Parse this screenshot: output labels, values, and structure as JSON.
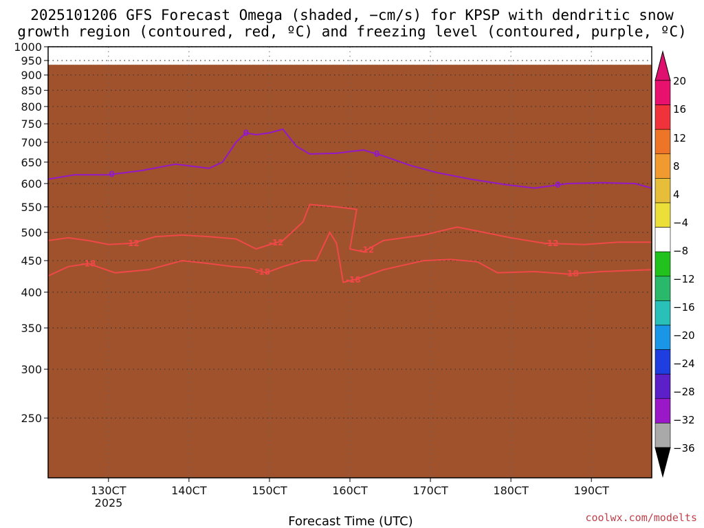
{
  "chart_data": {
    "type": "heatmap",
    "title_line1": "2025101206 GFS Forecast Omega (shaded, −cm/s) for KPSP with dendritic snow",
    "title_line2": "growth region (contoured, red, ºC) and freezing level (contoured, purple, ºC)",
    "xlabel": "Forecast Time (UTC)",
    "year_label": "2025",
    "credit": "coolwx.com/modelts",
    "y_axis": {
      "scale": "log-pressure",
      "range_hpa": [
        1000,
        200
      ],
      "ticks": [
        250,
        300,
        350,
        400,
        450,
        500,
        550,
        600,
        650,
        700,
        750,
        800,
        850,
        900,
        950,
        1000
      ]
    },
    "x_axis": {
      "range_hours": [
        0,
        180
      ],
      "ticks": [
        {
          "label": "130CT",
          "hour": 18
        },
        {
          "label": "140CT",
          "hour": 42
        },
        {
          "label": "150CT",
          "hour": 66
        },
        {
          "label": "160CT",
          "hour": 90
        },
        {
          "label": "170CT",
          "hour": 114
        },
        {
          "label": "180CT",
          "hour": 138
        },
        {
          "label": "190CT",
          "hour": 162
        }
      ]
    },
    "ground_level_hpa": 935,
    "colorbar": {
      "labels": [
        "20",
        "16",
        "12",
        "8",
        "4",
        "−4",
        "−8",
        "−12",
        "−16",
        "−20",
        "−24",
        "−28",
        "−32",
        "−36"
      ],
      "top_triangle_color": "#e0116e",
      "bottom_triangle_color": "#000000",
      "bins": [
        {
          "lo": 20,
          "hi": 24,
          "color": "#e8116e"
        },
        {
          "lo": 16,
          "hi": 20,
          "color": "#f0333a"
        },
        {
          "lo": 12,
          "hi": 16,
          "color": "#ee7528"
        },
        {
          "lo": 8,
          "hi": 12,
          "color": "#f09a30"
        },
        {
          "lo": 4,
          "hi": 8,
          "color": "#e6be3a"
        },
        {
          "lo": 0,
          "hi": 4,
          "color": "#ecdf3a"
        },
        {
          "lo": -4,
          "hi": 4,
          "color": "#ffffff"
        },
        {
          "lo": -8,
          "hi": -4,
          "color": "#22c21e"
        },
        {
          "lo": -12,
          "hi": -8,
          "color": "#2ab86a"
        },
        {
          "lo": -16,
          "hi": -12,
          "color": "#28c0b8"
        },
        {
          "lo": -20,
          "hi": -16,
          "color": "#1a96e6"
        },
        {
          "lo": -24,
          "hi": -20,
          "color": "#1e3ee0"
        },
        {
          "lo": -28,
          "hi": -24,
          "color": "#5c20c8"
        },
        {
          "lo": -32,
          "hi": -28,
          "color": "#9a18c8"
        },
        {
          "lo": -36,
          "hi": -32,
          "color": "#a9a9a9"
        }
      ]
    },
    "contours": [
      {
        "name": "minus18",
        "label": "-18",
        "color": "#f04848",
        "points": [
          [
            0,
            425
          ],
          [
            6,
            440
          ],
          [
            12,
            445
          ],
          [
            20,
            430
          ],
          [
            30,
            435
          ],
          [
            40,
            450
          ],
          [
            48,
            445
          ],
          [
            55,
            440
          ],
          [
            60,
            438
          ],
          [
            65,
            430
          ],
          [
            70,
            440
          ],
          [
            76,
            450
          ],
          [
            80,
            450
          ],
          [
            84,
            500
          ],
          [
            86,
            480
          ],
          [
            88,
            415
          ],
          [
            92,
            420
          ],
          [
            100,
            435
          ],
          [
            112,
            450
          ],
          [
            120,
            452
          ],
          [
            128,
            448
          ],
          [
            134,
            430
          ],
          [
            145,
            432
          ],
          [
            155,
            428
          ],
          [
            165,
            432
          ],
          [
            180,
            435
          ]
        ],
        "label_hours": [
          12,
          64,
          91,
          156
        ]
      },
      {
        "name": "minus12",
        "label": "-12",
        "color": "#f04848",
        "points": [
          [
            0,
            485
          ],
          [
            6,
            490
          ],
          [
            12,
            485
          ],
          [
            18,
            478
          ],
          [
            25,
            480
          ],
          [
            32,
            492
          ],
          [
            40,
            495
          ],
          [
            48,
            492
          ],
          [
            56,
            488
          ],
          [
            62,
            470
          ],
          [
            70,
            485
          ],
          [
            76,
            520
          ],
          [
            78,
            555
          ],
          [
            86,
            550
          ],
          [
            92,
            545
          ],
          [
            90,
            470
          ],
          [
            94,
            465
          ],
          [
            100,
            485
          ],
          [
            112,
            495
          ],
          [
            122,
            510
          ],
          [
            130,
            500
          ],
          [
            138,
            490
          ],
          [
            148,
            480
          ],
          [
            160,
            478
          ],
          [
            170,
            482
          ],
          [
            180,
            482
          ]
        ],
        "label_hours": [
          25,
          68,
          95,
          150
        ]
      },
      {
        "name": "zero",
        "label": "0",
        "color": "#9418c8",
        "points": [
          [
            0,
            610
          ],
          [
            8,
            620
          ],
          [
            18,
            620
          ],
          [
            28,
            630
          ],
          [
            38,
            645
          ],
          [
            48,
            635
          ],
          [
            52,
            650
          ],
          [
            56,
            700
          ],
          [
            59,
            725
          ],
          [
            62,
            720
          ],
          [
            66,
            725
          ],
          [
            70,
            735
          ],
          [
            74,
            690
          ],
          [
            78,
            670
          ],
          [
            86,
            672
          ],
          [
            94,
            680
          ],
          [
            100,
            665
          ],
          [
            108,
            642
          ],
          [
            116,
            625
          ],
          [
            126,
            610
          ],
          [
            136,
            598
          ],
          [
            145,
            590
          ],
          [
            155,
            600
          ],
          [
            165,
            602
          ],
          [
            175,
            600
          ],
          [
            180,
            590
          ]
        ],
        "label_hours": [
          19,
          59,
          98,
          152
        ]
      }
    ]
  }
}
